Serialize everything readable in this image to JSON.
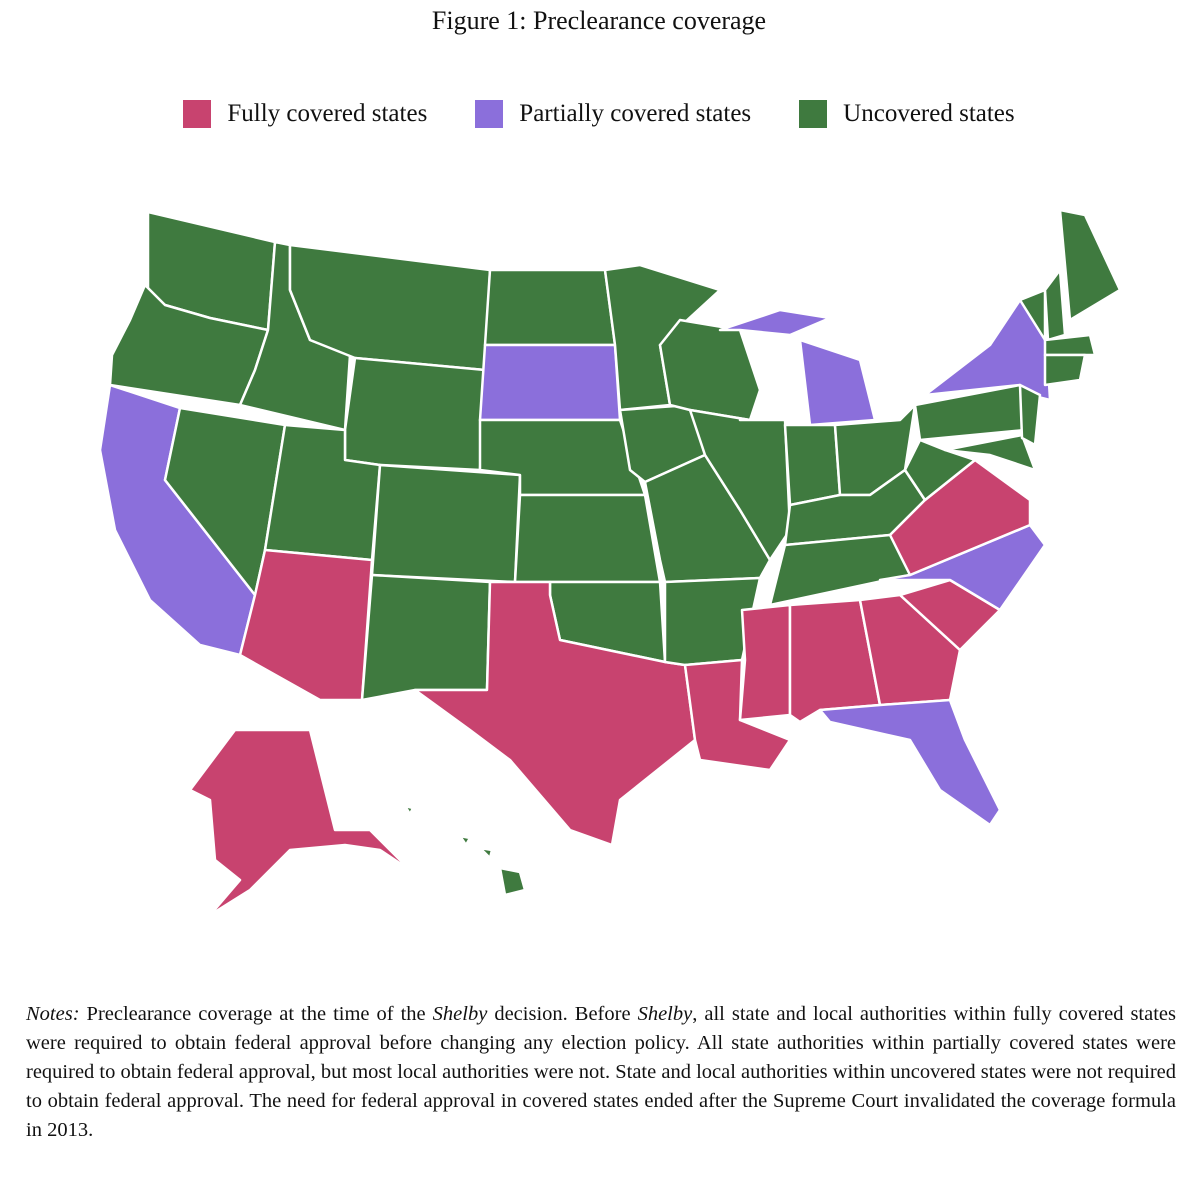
{
  "title": "Figure 1: Preclearance coverage",
  "legend": [
    {
      "label": "Fully covered states",
      "color": "#c8436f"
    },
    {
      "label": "Partially covered states",
      "color": "#8b6fdb"
    },
    {
      "label": "Uncovered states",
      "color": "#3f7a3f"
    }
  ],
  "notes": [
    "Notes:",
    " Preclearance coverage at the time of the ",
    "Shelby",
    " decision. Before ",
    "Shelby",
    ", all state and local authorities within fully covered states were required to obtain federal approval before changing any election policy. All state authorities within partially covered states were required to obtain federal approval, but most local authorities were not. State and local authorities within uncovered states were not required to obtain federal approval. The need for federal approval in covered states ended after the Supreme Court invalidated the coverage formula in 2013."
  ]
}
